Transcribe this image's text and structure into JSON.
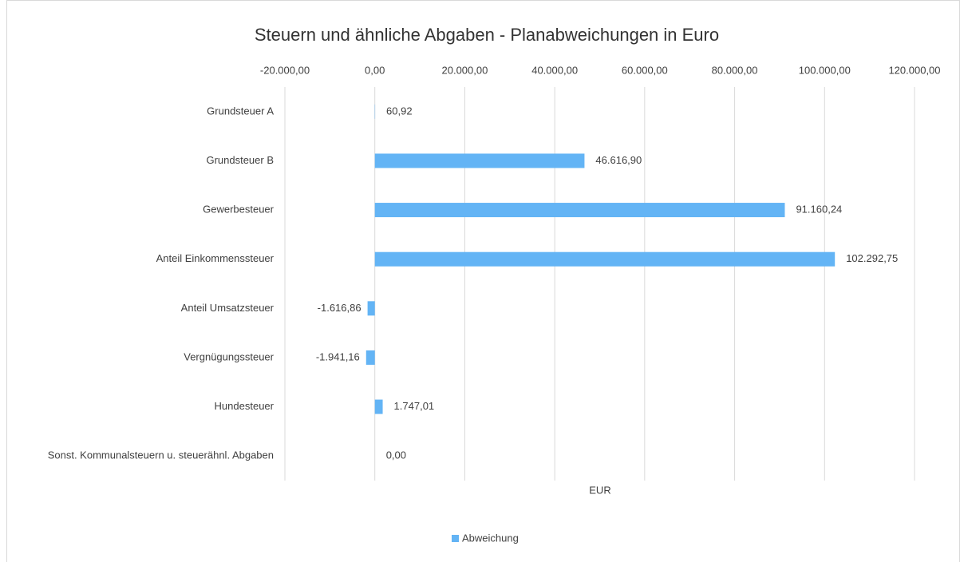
{
  "chart_data": {
    "type": "bar",
    "orientation": "horizontal",
    "title": "Steuern und ähnliche Abgaben - Planabweichungen in Euro",
    "x_label": "EUR",
    "categories": [
      "Grundsteuer A",
      "Grundsteuer B",
      "Gewerbesteuer",
      "Anteil Einkommenssteuer",
      "Anteil Umsatzsteuer",
      "Vergnügungssteuer",
      "Hundesteuer",
      "Sonst. Kommunalsteuern u. steuerähnl. Abgaben"
    ],
    "series": [
      {
        "name": "Abweichung",
        "color": "#63b4f5",
        "values": [
          60.92,
          46616.9,
          91160.24,
          102292.75,
          -1616.86,
          -1941.16,
          1747.01,
          0
        ],
        "value_labels": [
          "60,92",
          "46.616,90",
          "91.160,24",
          "102.292,75",
          "-1.616,86",
          "-1.941,16",
          "1.747,01",
          "0,00"
        ]
      }
    ],
    "xlim": [
      -20000,
      120000
    ],
    "xticks": [
      {
        "value": -20000,
        "label": "-20.000,00"
      },
      {
        "value": 0,
        "label": "0,00"
      },
      {
        "value": 20000,
        "label": "20.000,00"
      },
      {
        "value": 40000,
        "label": "40.000,00"
      },
      {
        "value": 60000,
        "label": "60.000,00"
      },
      {
        "value": 80000,
        "label": "80.000,00"
      },
      {
        "value": 100000,
        "label": "100.000,00"
      },
      {
        "value": 120000,
        "label": "120.000,00"
      }
    ],
    "grid": true,
    "legend": "bottom"
  }
}
